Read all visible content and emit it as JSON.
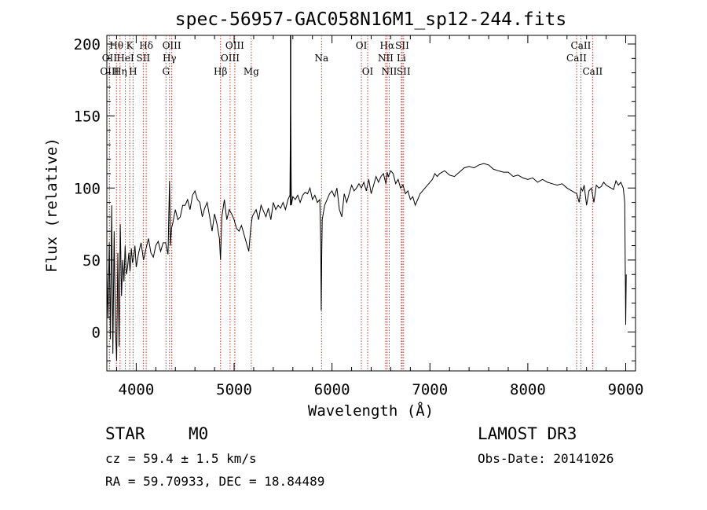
{
  "chart_data": {
    "type": "line",
    "title": "spec-56957-GAC058N16M1_sp12-244.fits",
    "xlabel": "Wavelength (Å)",
    "ylabel": "Flux (relative)",
    "xlim": [
      3700,
      9100
    ],
    "ylim": [
      -27,
      206
    ],
    "xticks": [
      4000,
      5000,
      6000,
      7000,
      8000,
      9000
    ],
    "yticks": [
      0,
      50,
      100,
      150,
      200
    ],
    "series": [
      {
        "name": "spectrum",
        "x": [
          3700,
          3712,
          3725,
          3737,
          3750,
          3762,
          3775,
          3787,
          3800,
          3812,
          3825,
          3837,
          3850,
          3862,
          3875,
          3887,
          3900,
          3912,
          3925,
          3937,
          3950,
          3962,
          3975,
          3987,
          4000,
          4025,
          4050,
          4075,
          4100,
          4125,
          4150,
          4175,
          4200,
          4225,
          4250,
          4275,
          4300,
          4325,
          4340,
          4350,
          4360,
          4375,
          4400,
          4425,
          4450,
          4475,
          4500,
          4525,
          4550,
          4575,
          4600,
          4625,
          4650,
          4675,
          4700,
          4725,
          4750,
          4775,
          4800,
          4825,
          4850,
          4861,
          4875,
          4900,
          4925,
          4950,
          4975,
          5000,
          5025,
          5050,
          5075,
          5100,
          5125,
          5150,
          5170,
          5185,
          5200,
          5225,
          5250,
          5275,
          5300,
          5325,
          5350,
          5375,
          5400,
          5425,
          5450,
          5475,
          5500,
          5525,
          5550,
          5570,
          5577,
          5585,
          5600,
          5625,
          5650,
          5675,
          5700,
          5725,
          5750,
          5775,
          5800,
          5825,
          5850,
          5875,
          5885,
          5890,
          5895,
          5900,
          5910,
          5925,
          5950,
          5975,
          6000,
          6025,
          6050,
          6075,
          6100,
          6125,
          6150,
          6175,
          6200,
          6225,
          6250,
          6275,
          6300,
          6325,
          6350,
          6375,
          6400,
          6425,
          6450,
          6475,
          6500,
          6525,
          6550,
          6563,
          6575,
          6600,
          6625,
          6650,
          6675,
          6700,
          6725,
          6750,
          6775,
          6800,
          6825,
          6850,
          6875,
          6900,
          6925,
          6950,
          6975,
          7000,
          7025,
          7050,
          7075,
          7100,
          7150,
          7200,
          7250,
          7300,
          7350,
          7400,
          7450,
          7500,
          7550,
          7600,
          7650,
          7700,
          7750,
          7800,
          7850,
          7900,
          7950,
          8000,
          8050,
          8100,
          8150,
          8200,
          8250,
          8300,
          8350,
          8400,
          8450,
          8500,
          8525,
          8542,
          8560,
          8575,
          8600,
          8625,
          8650,
          8662,
          8675,
          8700,
          8725,
          8750,
          8775,
          8800,
          8825,
          8850,
          8875,
          8900,
          8925,
          8950,
          8975,
          8990,
          9000,
          9005
        ],
        "values": [
          45,
          10,
          62,
          -5,
          88,
          -15,
          70,
          5,
          -20,
          55,
          -10,
          75,
          25,
          50,
          35,
          60,
          40,
          45,
          55,
          42,
          58,
          48,
          52,
          60,
          45,
          55,
          62,
          50,
          58,
          65,
          55,
          52,
          60,
          63,
          56,
          62,
          62,
          54,
          105,
          60,
          72,
          76,
          85,
          78,
          80,
          88,
          88,
          92,
          85,
          95,
          98,
          92,
          90,
          80,
          86,
          90,
          80,
          70,
          82,
          75,
          65,
          50,
          80,
          92,
          78,
          85,
          82,
          78,
          72,
          70,
          74,
          68,
          62,
          56,
          72,
          80,
          82,
          85,
          78,
          88,
          84,
          80,
          86,
          78,
          90,
          85,
          88,
          86,
          90,
          85,
          92,
          95,
          160,
          88,
          94,
          92,
          95,
          90,
          95,
          97,
          96,
          100,
          92,
          95,
          90,
          92,
          62,
          15,
          55,
          78,
          82,
          88,
          92,
          96,
          98,
          94,
          100,
          85,
          80,
          96,
          90,
          96,
          102,
          98,
          100,
          103,
          100,
          104,
          98,
          106,
          96,
          102,
          108,
          104,
          108,
          110,
          103,
          111,
          108,
          112,
          110,
          103,
          106,
          100,
          102,
          96,
          98,
          92,
          94,
          88,
          92,
          96,
          98,
          100,
          102,
          104,
          106,
          110,
          108,
          110,
          112,
          109,
          108,
          111,
          114,
          115,
          114,
          116,
          117,
          116,
          113,
          112,
          111,
          111,
          108,
          109,
          107,
          106,
          107,
          104,
          106,
          104,
          103,
          102,
          103,
          100,
          98,
          96,
          90,
          100,
          98,
          102,
          88,
          98,
          100,
          95,
          90,
          102,
          100,
          101,
          104,
          102,
          101,
          100,
          99,
          105,
          102,
          104,
          100,
          90,
          5,
          40
        ]
      }
    ],
    "spectral_lines": [
      {
        "name": "Hθ",
        "wavelength": 3798,
        "row": 1
      },
      {
        "name": "OII",
        "wavelength": 3727,
        "row": 2
      },
      {
        "name": "OIII",
        "wavelength": 3727,
        "row": 3
      },
      {
        "name": "HeI",
        "wavelength": 3889,
        "row": 2
      },
      {
        "name": "Hη",
        "wavelength": 3835,
        "row": 3
      },
      {
        "name": "K",
        "wavelength": 3934,
        "row": 1
      },
      {
        "name": "SII",
        "wavelength": 4072,
        "row": 2
      },
      {
        "name": "H",
        "wavelength": 3968,
        "row": 3
      },
      {
        "name": "Hδ",
        "wavelength": 4102,
        "row": 1
      },
      {
        "name": "OIII",
        "wavelength": 4363,
        "row": 1
      },
      {
        "name": "Hγ",
        "wavelength": 4340,
        "row": 2
      },
      {
        "name": "G",
        "wavelength": 4304,
        "row": 3
      },
      {
        "name": "OIII",
        "wavelength": 5007,
        "row": 1
      },
      {
        "name": "OIII",
        "wavelength": 4959,
        "row": 2
      },
      {
        "name": "Hβ",
        "wavelength": 4861,
        "row": 3
      },
      {
        "name": "Mg",
        "wavelength": 5175,
        "row": 3
      },
      {
        "name": "Na",
        "wavelength": 5893,
        "row": 2
      },
      {
        "name": "OI",
        "wavelength": 6300,
        "row": 1
      },
      {
        "name": "OI",
        "wavelength": 6364,
        "row": 3
      },
      {
        "name": "Hα",
        "wavelength": 6563,
        "row": 1
      },
      {
        "name": "SII",
        "wavelength": 6717,
        "row": 1
      },
      {
        "name": "NII",
        "wavelength": 6548,
        "row": 2
      },
      {
        "name": "Li",
        "wavelength": 6708,
        "row": 2
      },
      {
        "name": "NII",
        "wavelength": 6584,
        "row": 3
      },
      {
        "name": "SII",
        "wavelength": 6731,
        "row": 3
      },
      {
        "name": "CaII",
        "wavelength": 8542,
        "row": 1
      },
      {
        "name": "CaII",
        "wavelength": 8498,
        "row": 2
      },
      {
        "name": "CaII",
        "wavelength": 8662,
        "row": 3
      }
    ],
    "sky_line_wavelength": 5577
  },
  "info": {
    "object_class": "STAR",
    "subclass": "M0",
    "survey": "LAMOST DR3",
    "redshift_text": "cz = 59.4 ± 1.5 km/s",
    "obs_date_text": "Obs-Date: 20141026",
    "coords_text": "RA =  59.70933, DEC =  18.84489"
  },
  "colors": {
    "spectrum": "#000000",
    "line_marker": "#c0392b",
    "axes": "#000000"
  }
}
